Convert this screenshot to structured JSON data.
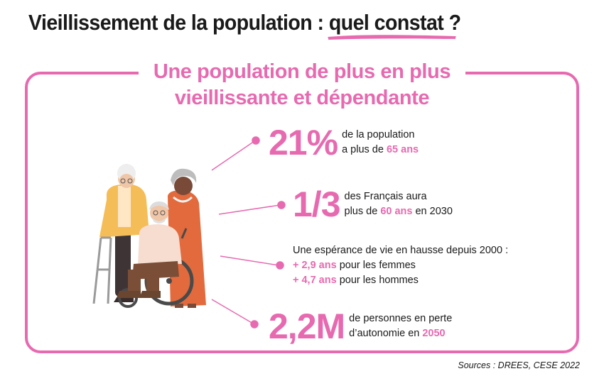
{
  "title": {
    "part1": "Vieillissement de la population : ",
    "highlight": "quel constat",
    "part2": " ?"
  },
  "subtitle": {
    "line1": "Une population de plus en plus",
    "line2": "vieillissante et dépendante"
  },
  "stats": [
    {
      "value": "21%",
      "line1": "de la population",
      "line2_prefix": "a plus de ",
      "line2_highlight": "65 ans"
    },
    {
      "value": "1/3",
      "line1": "des Français aura",
      "line2_prefix": "plus de ",
      "line2_highlight": "60 ans",
      "line2_suffix": " en 2030"
    },
    {
      "intro": "Une espérance de vie en hausse depuis 2000 :",
      "women_value": "+ 2,9 ans",
      "women_label": " pour les femmes",
      "men_value": "+ 4,7 ans",
      "men_label": " pour les hommes"
    },
    {
      "value": "2,2M",
      "line1": "de personnes en perte",
      "line2_prefix": "d’autonomie en ",
      "line2_highlight": "2050"
    }
  ],
  "sources": "Sources : DREES, CESE 2022",
  "colors": {
    "accent": "#e76ab0",
    "text": "#1a1a1a"
  }
}
